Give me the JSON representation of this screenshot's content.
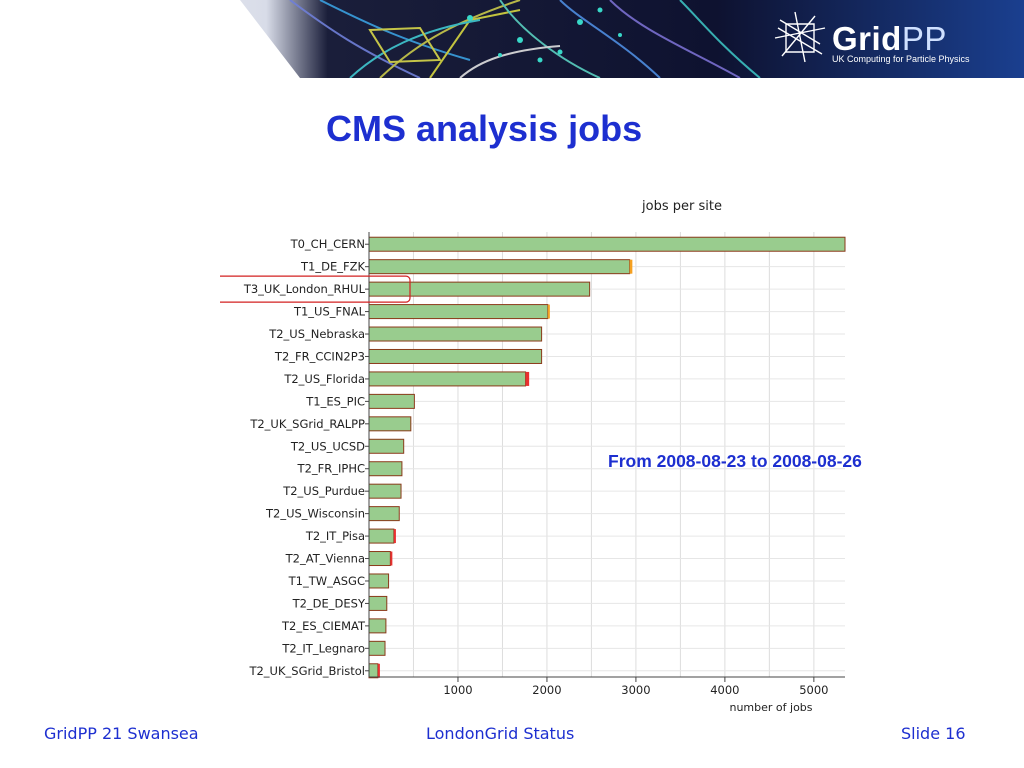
{
  "header": {
    "logo_main": "Grid",
    "logo_accent": "PP",
    "logo_subtitle": "UK Computing for Particle Physics"
  },
  "slide": {
    "title": "CMS analysis jobs",
    "note": "From 2008-08-23 to 2008-08-26"
  },
  "chart_data": {
    "type": "bar",
    "orientation": "horizontal",
    "title": "jobs per site",
    "xlabel": "number of jobs",
    "ylabel": "",
    "xlim": [
      0,
      5350
    ],
    "xticks": [
      1000,
      2000,
      3000,
      4000,
      5000
    ],
    "grid": true,
    "highlighted_category": "T3_UK_London_RHUL",
    "colors": {
      "bar_fill": "#99cc8e",
      "bar_border": "#8b3a1a",
      "highlight_box": "#d32020",
      "cap_orange": "#f5a020",
      "cap_red": "#e83030"
    },
    "categories": [
      "T0_CH_CERN",
      "T1_DE_FZK",
      "T3_UK_London_RHUL",
      "T1_US_FNAL",
      "T2_US_Nebraska",
      "T2_FR_CCIN2P3",
      "T2_US_Florida",
      "T1_ES_PIC",
      "T2_UK_SGrid_RALPP",
      "T2_US_UCSD",
      "T2_FR_IPHC",
      "T2_US_Purdue",
      "T2_US_Wisconsin",
      "T2_IT_Pisa",
      "T2_AT_Vienna",
      "T1_TW_ASGC",
      "T2_DE_DESY",
      "T2_ES_CIEMAT",
      "T2_IT_Legnaro",
      "T2_UK_SGrid_Bristol"
    ],
    "values": [
      5350,
      2930,
      2480,
      2010,
      1940,
      1940,
      1760,
      510,
      470,
      390,
      370,
      360,
      340,
      280,
      240,
      220,
      200,
      190,
      180,
      100
    ],
    "failed_caps": [
      0,
      30,
      0,
      20,
      0,
      0,
      40,
      0,
      0,
      0,
      0,
      0,
      0,
      20,
      20,
      0,
      0,
      0,
      0,
      20
    ],
    "cap_colors": [
      "",
      "orange",
      "",
      "orange",
      "",
      "",
      "red",
      "",
      "",
      "",
      "",
      "",
      "",
      "red",
      "red",
      "",
      "",
      "",
      "",
      "red"
    ]
  },
  "footer": {
    "left": "GridPP 21 Swansea",
    "center": "LondonGrid Status",
    "right": "Slide 16"
  }
}
